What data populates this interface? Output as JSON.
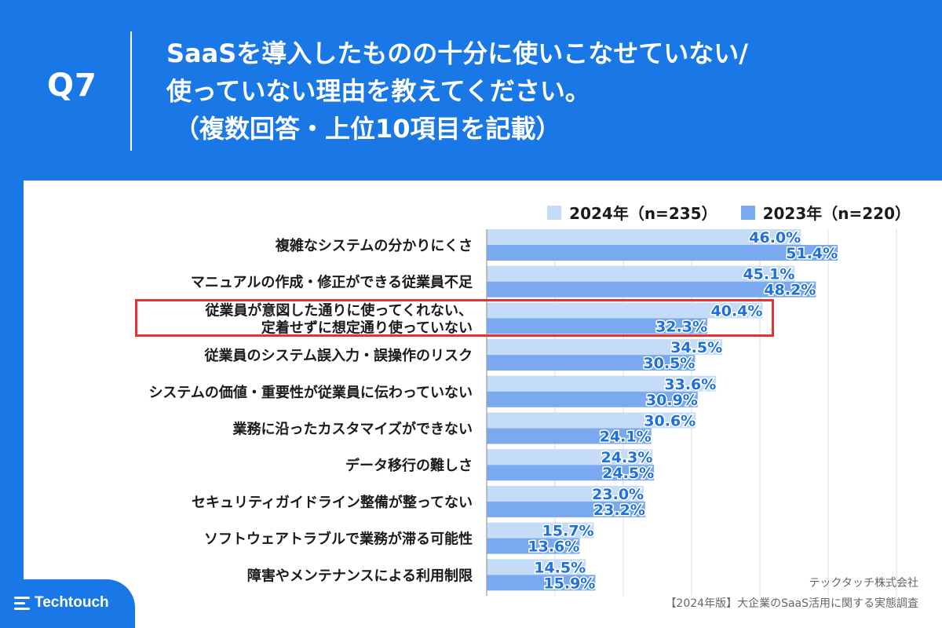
{
  "header": {
    "question_id": "Q7",
    "title_lines": [
      "SaaSを導入したものの十分に使いこなせていない/",
      "使っていない理由を教えてください。",
      "（複数回答・上位10項目を記載）"
    ]
  },
  "chart_data": {
    "type": "bar",
    "orientation": "horizontal",
    "categories": [
      [
        "複雑なシステムの分かりにくさ"
      ],
      [
        "マニュアルの作成・修正ができる従業員不足"
      ],
      [
        "従業員が意図した通りに使ってくれない、",
        "定着せずに想定通り使っていない"
      ],
      [
        "従業員のシステム誤入力・誤操作のリスク"
      ],
      [
        "システムの価値・重要性が従業員に伝わっていない"
      ],
      [
        "業務に沿ったカスタマイズができない"
      ],
      [
        "データ移行の難しさ"
      ],
      [
        "セキュリティガイドライン整備が整ってない"
      ],
      [
        "ソフトウェアトラブルで業務が滞る可能性"
      ],
      [
        "障害やメンテナンスによる利用制限"
      ]
    ],
    "series": [
      {
        "name": "2024年（n=235）",
        "color": "#c5dcf8",
        "values": [
          46.0,
          45.1,
          40.4,
          34.5,
          33.6,
          30.6,
          24.3,
          23.0,
          15.7,
          14.5
        ],
        "labels": [
          "46.0%",
          "45.1%",
          "40.4%",
          "34.5%",
          "33.6%",
          "30.6%",
          "24.3%",
          "23.0%",
          "15.7%",
          "14.5%"
        ]
      },
      {
        "name": "2023年（n=220）",
        "color": "#7aa9f0",
        "values": [
          51.4,
          48.2,
          32.3,
          30.5,
          30.9,
          24.1,
          24.5,
          23.2,
          13.6,
          15.9
        ],
        "labels": [
          "51.4%",
          "48.2%",
          "32.3%",
          "30.5%",
          "30.9%",
          "24.1%",
          "24.5%",
          "23.2%",
          "13.6%",
          "15.9%"
        ]
      }
    ],
    "xlim": [
      0,
      60
    ],
    "grid": true,
    "legend": "top-right",
    "highlighted_category_index": 2,
    "label_color": "#1f6fdc"
  },
  "footer": {
    "company": "テックタッチ株式会社",
    "source": "【2024年版】大企業のSaaS活用に関する実態調査"
  },
  "brand": {
    "name": "Techtouch"
  },
  "colors": {
    "header_bg": "#1a78e6",
    "highlight": "#e5322d"
  }
}
